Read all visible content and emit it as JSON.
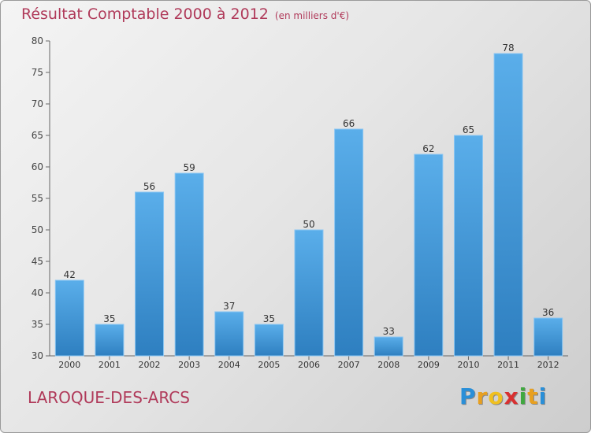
{
  "chart_data": {
    "type": "bar",
    "title": "Résultat Comptable 2000 à 2012",
    "subtitle": "(en milliers d'€)",
    "categories": [
      "2000",
      "2001",
      "2002",
      "2003",
      "2004",
      "2005",
      "2006",
      "2007",
      "2008",
      "2009",
      "2010",
      "2011",
      "2012"
    ],
    "values": [
      42,
      35,
      56,
      59,
      37,
      35,
      50,
      66,
      33,
      62,
      65,
      78,
      36
    ],
    "ylim": [
      30,
      80
    ],
    "yticks": [
      30,
      35,
      40,
      45,
      50,
      55,
      60,
      65,
      70,
      75,
      80
    ],
    "grid": false,
    "bar_color": "#4a9fe0"
  },
  "footer": {
    "place": "LAROQUE-DES-ARCS"
  },
  "logo": {
    "letters": [
      "P",
      "r",
      "o",
      "x",
      "i",
      "t",
      "i"
    ],
    "colors": [
      "#2a8fd8",
      "#e8a020",
      "#f0c020",
      "#d83030",
      "#40a840",
      "#e8a020",
      "#2a8fd8"
    ]
  }
}
